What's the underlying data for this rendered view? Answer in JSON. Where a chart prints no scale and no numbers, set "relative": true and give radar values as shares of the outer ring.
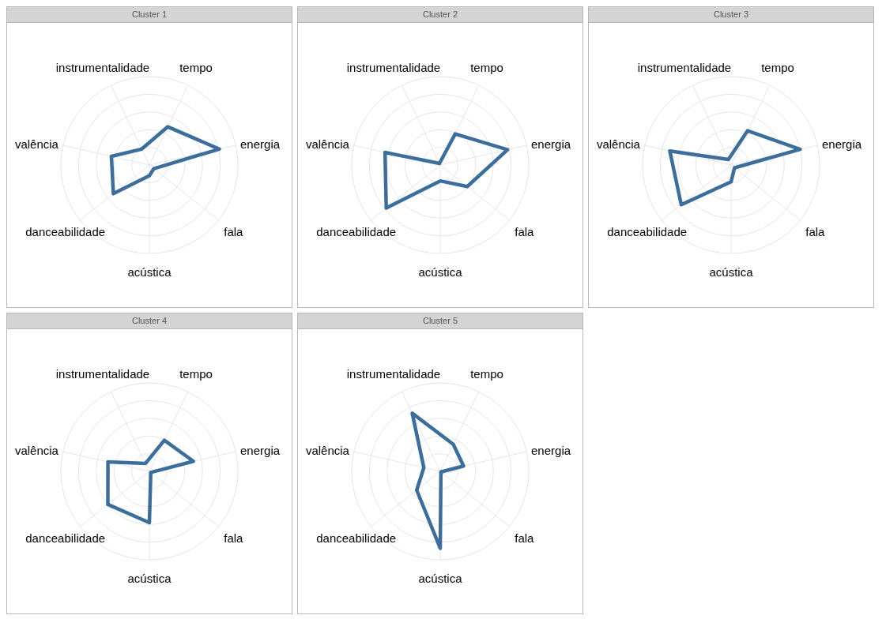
{
  "chart_data": [
    {
      "type": "radar",
      "title": "Cluster 1",
      "categories": [
        "tempo",
        "energia",
        "fala",
        "acústica",
        "danceabilidade",
        "valência",
        "instrumentalidade"
      ],
      "relative": true,
      "grid": true,
      "series": [
        {
          "color": "#3b6e9c",
          "values": [
            0.48,
            0.81,
            0.065,
            0.12,
            0.52,
            0.44,
            0.2
          ]
        }
      ]
    },
    {
      "type": "radar",
      "title": "Cluster 2",
      "categories": [
        "tempo",
        "energia",
        "fala",
        "acústica",
        "danceabilidade",
        "valência",
        "instrumentalidade"
      ],
      "relative": true,
      "grid": true,
      "series": [
        {
          "color": "#3b6e9c",
          "values": [
            0.39,
            0.78,
            0.39,
            0.18,
            0.78,
            0.64,
            0.02
          ]
        }
      ]
    },
    {
      "type": "radar",
      "title": "Cluster 3",
      "categories": [
        "tempo",
        "energia",
        "fala",
        "acústica",
        "danceabilidade",
        "valência",
        "instrumentalidade"
      ],
      "relative": true,
      "grid": true,
      "series": [
        {
          "color": "#3b6e9c",
          "values": [
            0.43,
            0.8,
            0.05,
            0.19,
            0.72,
            0.71,
            0.07
          ]
        }
      ]
    },
    {
      "type": "radar",
      "title": "Cluster 4",
      "categories": [
        "tempo",
        "energia",
        "fala",
        "acústica",
        "danceabilidade",
        "valência",
        "instrumentalidade"
      ],
      "relative": true,
      "grid": true,
      "series": [
        {
          "color": "#3b6e9c",
          "values": [
            0.39,
            0.51,
            0.02,
            0.58,
            0.6,
            0.48,
            0.1
          ]
        }
      ]
    },
    {
      "type": "radar",
      "title": "Cluster 5",
      "categories": [
        "tempo",
        "energia",
        "fala",
        "acústica",
        "danceabilidade",
        "valência",
        "instrumentalidade"
      ],
      "relative": true,
      "grid": true,
      "series": [
        {
          "color": "#3b6e9c",
          "values": [
            0.34,
            0.27,
            0.01,
            0.87,
            0.34,
            0.19,
            0.73
          ]
        }
      ]
    }
  ]
}
